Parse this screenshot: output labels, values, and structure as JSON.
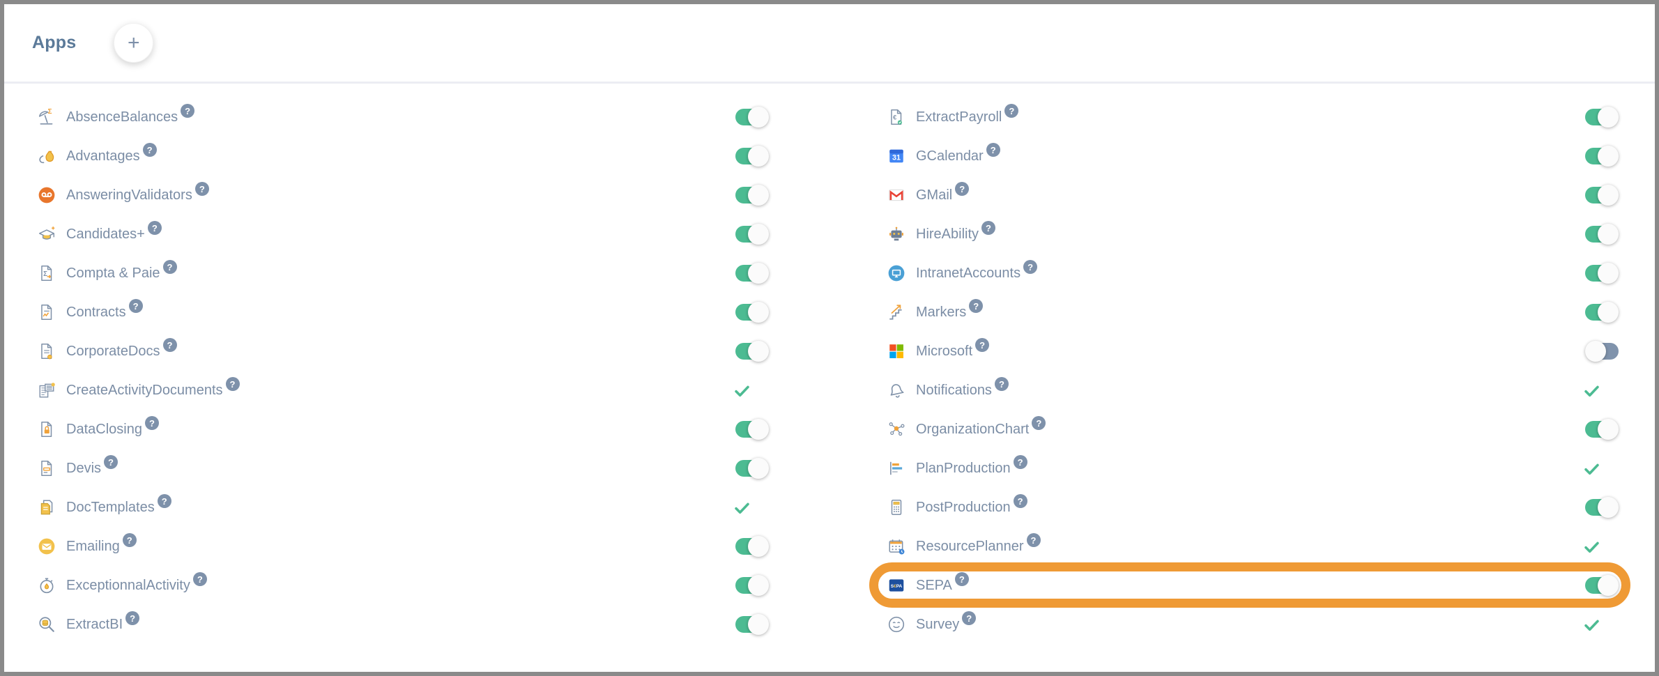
{
  "header": {
    "title": "Apps",
    "add_button": "+"
  },
  "help_symbol": "?",
  "colors": {
    "accent_green": "#4cbb92",
    "toggle_off_track": "#8093ac",
    "label_text": "#7b8da5",
    "title_text": "#5b7a99",
    "help_badge_bg": "#7e91aa",
    "highlight_orange": "#ef9a35",
    "divider": "#ecedf3",
    "frame_border": "#8a8a8a"
  },
  "apps": {
    "left": [
      {
        "label": "AbsenceBalances",
        "icon": "absence-balances",
        "control": "toggle",
        "state": "on"
      },
      {
        "label": "Advantages",
        "icon": "advantages",
        "control": "toggle",
        "state": "on"
      },
      {
        "label": "AnsweringValidators",
        "icon": "answering-validators",
        "control": "toggle",
        "state": "on"
      },
      {
        "label": "Candidates+",
        "icon": "candidates-plus",
        "control": "toggle",
        "state": "on"
      },
      {
        "label": "Compta & Paie",
        "icon": "compta-paie",
        "control": "toggle",
        "state": "on"
      },
      {
        "label": "Contracts",
        "icon": "contracts",
        "control": "toggle",
        "state": "on"
      },
      {
        "label": "CorporateDocs",
        "icon": "corporate-docs",
        "control": "toggle",
        "state": "on"
      },
      {
        "label": "CreateActivityDocuments",
        "icon": "create-activity-documents",
        "control": "check"
      },
      {
        "label": "DataClosing",
        "icon": "data-closing",
        "control": "toggle",
        "state": "on"
      },
      {
        "label": "Devis",
        "icon": "devis",
        "control": "toggle",
        "state": "on"
      },
      {
        "label": "DocTemplates",
        "icon": "doc-templates",
        "control": "check"
      },
      {
        "label": "Emailing",
        "icon": "emailing",
        "control": "toggle",
        "state": "on"
      },
      {
        "label": "ExceptionnalActivity",
        "icon": "exceptionnal-activity",
        "control": "toggle",
        "state": "on"
      },
      {
        "label": "ExtractBI",
        "icon": "extract-bi",
        "control": "toggle",
        "state": "on"
      }
    ],
    "right": [
      {
        "label": "ExtractPayroll",
        "icon": "extract-payroll",
        "control": "toggle",
        "state": "on"
      },
      {
        "label": "GCalendar",
        "icon": "gcalendar",
        "control": "toggle",
        "state": "on"
      },
      {
        "label": "GMail",
        "icon": "gmail",
        "control": "toggle",
        "state": "on"
      },
      {
        "label": "HireAbility",
        "icon": "hire-ability",
        "control": "toggle",
        "state": "on"
      },
      {
        "label": "IntranetAccounts",
        "icon": "intranet-accounts",
        "control": "toggle",
        "state": "on"
      },
      {
        "label": "Markers",
        "icon": "markers",
        "control": "toggle",
        "state": "on"
      },
      {
        "label": "Microsoft",
        "icon": "microsoft",
        "control": "toggle",
        "state": "off"
      },
      {
        "label": "Notifications",
        "icon": "notifications",
        "control": "check"
      },
      {
        "label": "OrganizationChart",
        "icon": "organization-chart",
        "control": "toggle",
        "state": "on"
      },
      {
        "label": "PlanProduction",
        "icon": "plan-production",
        "control": "check"
      },
      {
        "label": "PostProduction",
        "icon": "post-production",
        "control": "toggle",
        "state": "on"
      },
      {
        "label": "ResourcePlanner",
        "icon": "resource-planner",
        "control": "check"
      },
      {
        "label": "SEPA",
        "icon": "sepa",
        "control": "toggle",
        "state": "on",
        "highlighted": true
      },
      {
        "label": "Survey",
        "icon": "survey",
        "control": "check"
      }
    ]
  }
}
